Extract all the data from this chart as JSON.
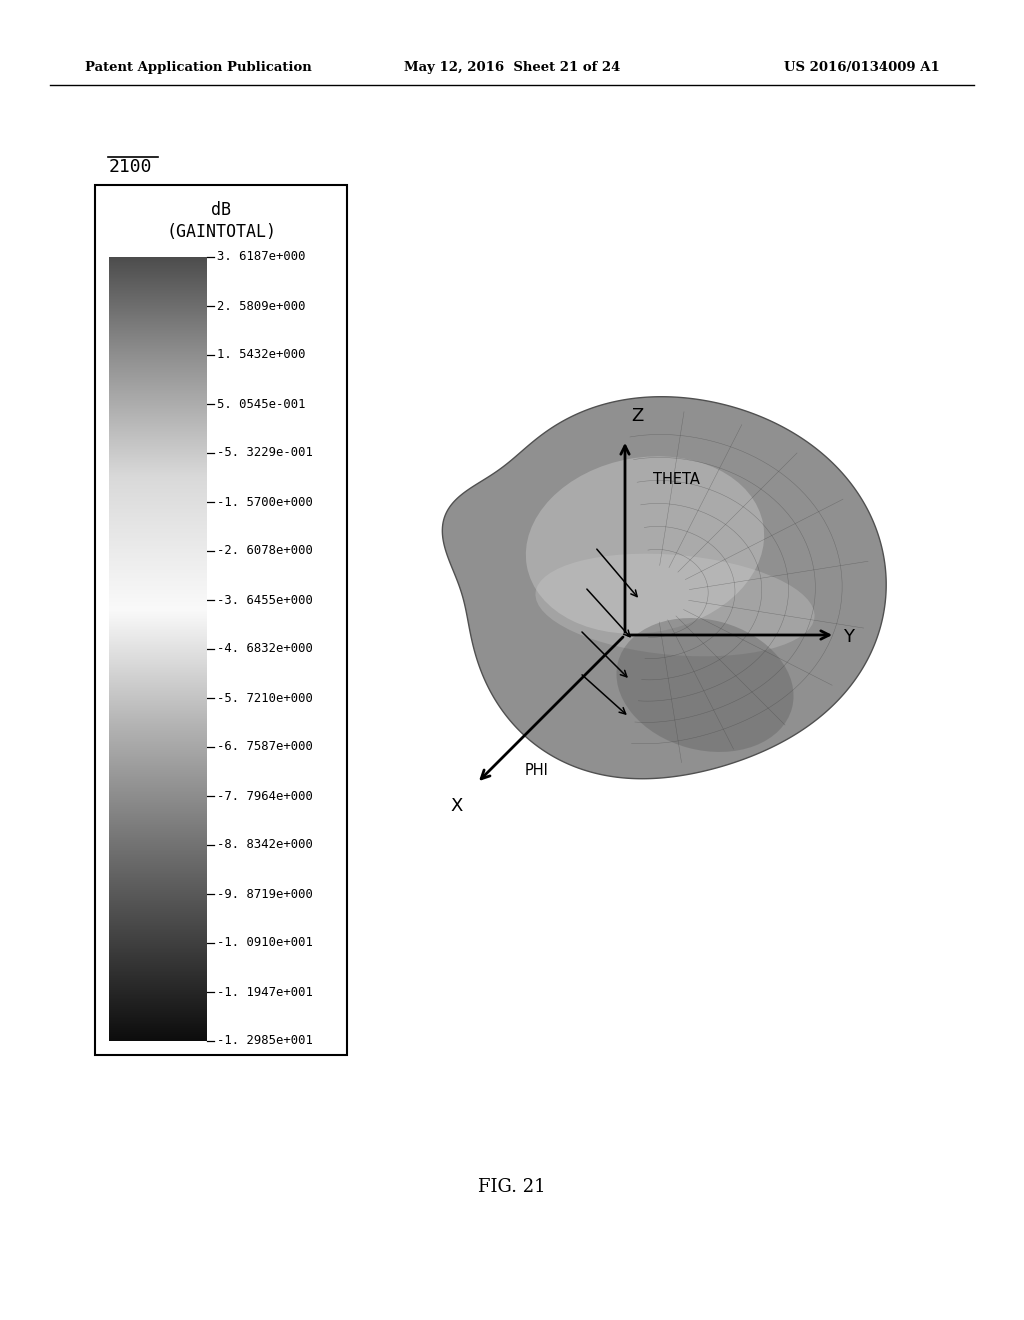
{
  "header_left": "Patent Application Publication",
  "header_mid": "May 12, 2016  Sheet 21 of 24",
  "header_right": "US 2016/0134009 A1",
  "figure_label": "2100",
  "colorbar_title_line1": "dB",
  "colorbar_title_line2": "(GAINTOTAL)",
  "colorbar_values": [
    "3. 6187e+000",
    "2. 5809e+000",
    "1. 5432e+000",
    "5. 0545e-001",
    "-5. 3229e-001",
    "-1. 5700e+000",
    "-2. 6078e+000",
    "-3. 6455e+000",
    "-4. 6832e+000",
    "-5. 7210e+000",
    "-6. 7587e+000",
    "-7. 7964e+000",
    "-8. 8342e+000",
    "-9. 8719e+000",
    "-1. 0910e+001",
    "-1. 1947e+001",
    "-1. 2985e+001"
  ],
  "figure_caption": "FIG. 21",
  "bg_color": "#ffffff"
}
